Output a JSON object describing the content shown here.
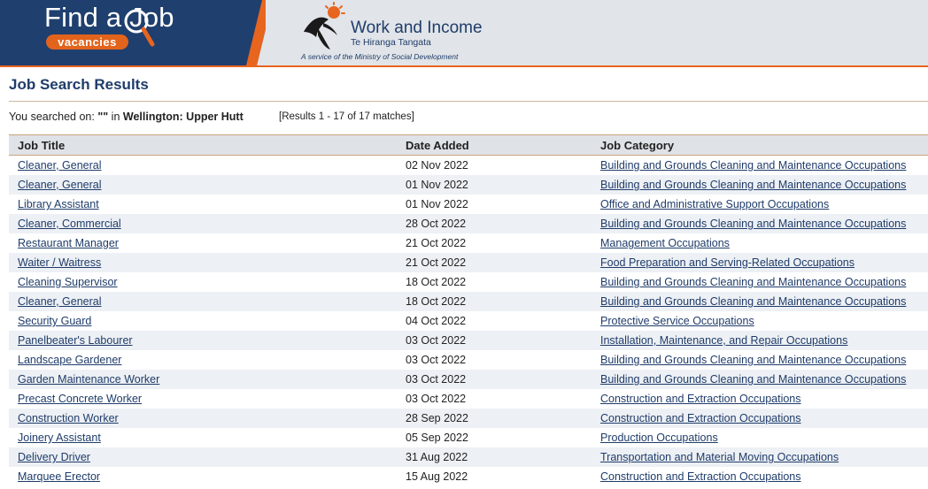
{
  "header": {
    "find_a_job_title": "Find a Job",
    "vacancies_badge": "vacancies",
    "brand_name": "Work and Income",
    "brand_subtitle": "Te Hiranga Tangata",
    "brand_tagline": "A service of the Ministry of Social Development",
    "colors": {
      "navy": "#1f3c6a",
      "orange": "#e8651f"
    }
  },
  "page": {
    "title": "Job Search Results",
    "search_prefix": "You searched on:",
    "search_term": "\"\"",
    "search_in": "in",
    "search_location": "Wellington: Upper Hutt",
    "results_summary": "[Results 1 - 17 of 17 matches]"
  },
  "table": {
    "headers": [
      "Job Title",
      "Date Added",
      "Job Category"
    ],
    "rows": [
      {
        "title": "Cleaner, General",
        "date": "02 Nov 2022",
        "category": "Building and Grounds Cleaning and Maintenance Occupations"
      },
      {
        "title": "Cleaner, General",
        "date": "01 Nov 2022",
        "category": "Building and Grounds Cleaning and Maintenance Occupations"
      },
      {
        "title": "Library Assistant",
        "date": "01 Nov 2022",
        "category": "Office and Administrative Support Occupations"
      },
      {
        "title": "Cleaner, Commercial",
        "date": "28 Oct 2022",
        "category": "Building and Grounds Cleaning and Maintenance Occupations"
      },
      {
        "title": "Restaurant Manager",
        "date": "21 Oct 2022",
        "category": "Management Occupations"
      },
      {
        "title": "Waiter / Waitress",
        "date": "21 Oct 2022",
        "category": "Food Preparation and Serving-Related Occupations"
      },
      {
        "title": "Cleaning Supervisor",
        "date": "18 Oct 2022",
        "category": "Building and Grounds Cleaning and Maintenance Occupations"
      },
      {
        "title": "Cleaner, General",
        "date": "18 Oct 2022",
        "category": "Building and Grounds Cleaning and Maintenance Occupations"
      },
      {
        "title": "Security Guard",
        "date": "04 Oct 2022",
        "category": "Protective Service Occupations"
      },
      {
        "title": "Panelbeater's Labourer",
        "date": "03 Oct 2022",
        "category": "Installation, Maintenance, and Repair Occupations"
      },
      {
        "title": "Landscape Gardener",
        "date": "03 Oct 2022",
        "category": "Building and Grounds Cleaning and Maintenance Occupations"
      },
      {
        "title": "Garden Maintenance Worker",
        "date": "03 Oct 2022",
        "category": "Building and Grounds Cleaning and Maintenance Occupations"
      },
      {
        "title": "Precast Concrete Worker",
        "date": "03 Oct 2022",
        "category": "Construction and Extraction Occupations"
      },
      {
        "title": "Construction Worker",
        "date": "28 Sep 2022",
        "category": "Construction and Extraction Occupations"
      },
      {
        "title": "Joinery Assistant",
        "date": "05 Sep 2022",
        "category": "Production Occupations"
      },
      {
        "title": "Delivery Driver",
        "date": "31 Aug 2022",
        "category": "Transportation and Material Moving Occupations"
      },
      {
        "title": "Marquee Erector",
        "date": "15 Aug 2022",
        "category": "Construction and Extraction Occupations"
      }
    ]
  }
}
